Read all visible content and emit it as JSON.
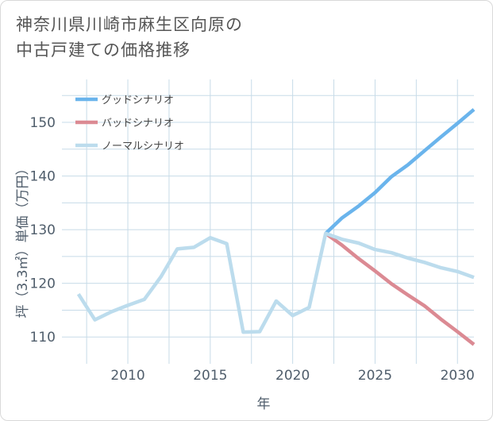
{
  "title": {
    "line1": "神奈川県川崎市麻生区向原の",
    "line2": "中古戸建ての価格推移"
  },
  "colors": {
    "good": "#6ab4ec",
    "bad": "#db8a93",
    "normal": "#bcdced",
    "grid": "#c7dbe8",
    "axis_text": "#4f5d6b"
  },
  "chart_data": {
    "type": "line",
    "xlabel": "年",
    "ylabel": "坪（3.3㎡）単価（万円）",
    "xlim": [
      2006,
      2031
    ],
    "ylim": [
      105,
      158
    ],
    "x_ticks": [
      2010,
      2015,
      2020,
      2025,
      2030
    ],
    "y_ticks": [
      110,
      120,
      130,
      140,
      150
    ],
    "legend_position": "top-left",
    "series": [
      {
        "key": "good",
        "name": "グッドシナリオ",
        "x": [
          2022,
          2023,
          2024,
          2025,
          2026,
          2027,
          2028,
          2029,
          2030,
          2031
        ],
        "values": [
          129.3,
          132.2,
          134.4,
          136.9,
          139.9,
          142.1,
          144.7,
          147.3,
          149.8,
          152.4
        ]
      },
      {
        "key": "bad",
        "name": "バッドシナリオ",
        "x": [
          2022,
          2023,
          2024,
          2025,
          2026,
          2027,
          2028,
          2029,
          2030,
          2031
        ],
        "values": [
          129.3,
          127.1,
          124.6,
          122.3,
          119.9,
          117.8,
          115.8,
          113.3,
          111.0,
          108.6
        ]
      },
      {
        "key": "normal",
        "name": "ノーマルシナリオ",
        "x": [
          2007,
          2008,
          2009,
          2010,
          2011,
          2012,
          2013,
          2014,
          2015,
          2016,
          2017,
          2018,
          2019,
          2020,
          2021,
          2022,
          2023,
          2024,
          2025,
          2026,
          2027,
          2028,
          2029,
          2030,
          2031
        ],
        "values": [
          118.0,
          113.2,
          114.7,
          115.9,
          117.0,
          121.2,
          126.4,
          126.7,
          128.5,
          127.4,
          110.9,
          111.0,
          116.7,
          114.0,
          115.5,
          129.3,
          128.2,
          127.5,
          126.3,
          125.7,
          124.7,
          123.9,
          122.9,
          122.2,
          121.1
        ]
      }
    ]
  }
}
